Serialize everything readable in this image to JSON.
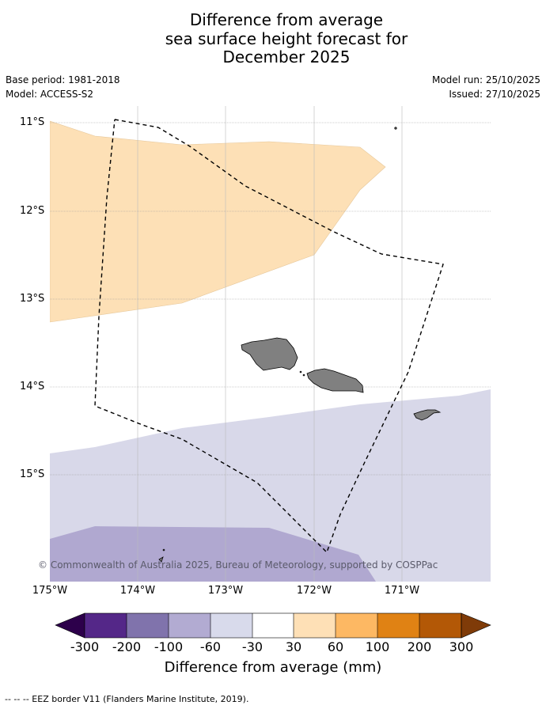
{
  "title": {
    "line1": "Difference from average",
    "line2": "sea surface height forecast for",
    "line3": "December 2025"
  },
  "meta": {
    "base_period": "Base period: 1981-2018",
    "model": "Model: ACCESS-S2",
    "model_run": "Model run: 25/10/2025",
    "issued": "Issued: 27/10/2025"
  },
  "map": {
    "lat_labels": [
      "11°S",
      "12°S",
      "13°S",
      "14°S",
      "15°S"
    ],
    "lon_labels": [
      "175°W",
      "174°W",
      "173°W",
      "172°W",
      "171°W"
    ],
    "copyright": "© Commonwealth of Australia 2025, Bureau of Meteorology, supported by COSPPac",
    "colors": {
      "land": "#808080",
      "eez_line": "#000000",
      "band_30_60": "#fde0b6",
      "band_m60_m30": "#d8d8e9",
      "band_m100_m60": "#b0a8d0"
    }
  },
  "colorbar": {
    "ticks": [
      "-300",
      "-200",
      "-100",
      "-60",
      "-30",
      "30",
      "60",
      "100",
      "200",
      "300"
    ],
    "colors": [
      "#2d004b",
      "#542788",
      "#8073ac",
      "#b2abd2",
      "#d8daeb",
      "#ffffff",
      "#fee0b6",
      "#fdb863",
      "#e08214",
      "#b35806",
      "#7f3b08"
    ],
    "label": "Difference from average (mm)"
  },
  "footnote": "--  --  -- EEZ border V11 (Flanders Marine Institute, 2019)."
}
